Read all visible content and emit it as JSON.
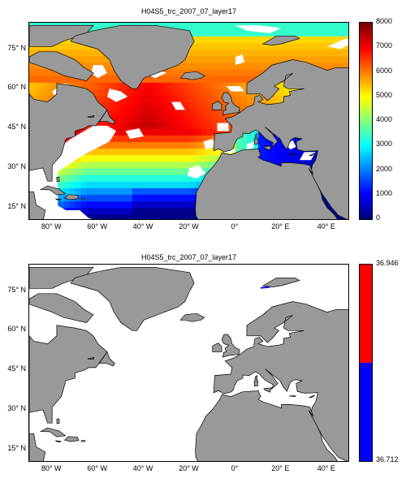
{
  "chart_data": [
    {
      "type": "heatmap",
      "title": "H04S5_trc_2007_07_layer17",
      "x_ticks": [
        "80° W",
        "60° W",
        "40° W",
        "20° W",
        "0°",
        "20° E",
        "40° E"
      ],
      "x_tick_values": [
        -80,
        -60,
        -40,
        -20,
        0,
        20,
        40
      ],
      "y_ticks": [
        "75° N",
        "60° N",
        "45° N",
        "30° N",
        "15° N"
      ],
      "y_tick_values": [
        75,
        60,
        45,
        30,
        15
      ],
      "xlim": [
        -90,
        50
      ],
      "ylim": [
        10,
        85
      ],
      "colorbar": {
        "range": [
          0,
          8000
        ],
        "ticks": [
          "0",
          "1000",
          "2000",
          "3000",
          "4000",
          "5000",
          "6000",
          "7000",
          "8000"
        ],
        "colormap": "jet"
      },
      "land_color": "#999999"
    },
    {
      "type": "heatmap",
      "title": "H04S5_trc_2007_07_layer17",
      "x_ticks": [
        "80° W",
        "60° W",
        "40° W",
        "20° W",
        "0°",
        "20° E",
        "40° E"
      ],
      "x_tick_values": [
        -80,
        -60,
        -40,
        -20,
        0,
        20,
        40
      ],
      "y_ticks": [
        "75° N",
        "60° N",
        "45° N",
        "30° N",
        "15° N"
      ],
      "y_tick_values": [
        75,
        60,
        45,
        30,
        15
      ],
      "xlim": [
        -90,
        50
      ],
      "ylim": [
        10,
        85
      ],
      "colorbar": {
        "range": [
          36.712,
          36.946
        ],
        "ticks": [
          "36.946",
          "36.712"
        ],
        "colors": [
          "#ff0000",
          "#0000ff"
        ]
      },
      "land_color": "#999999"
    }
  ]
}
